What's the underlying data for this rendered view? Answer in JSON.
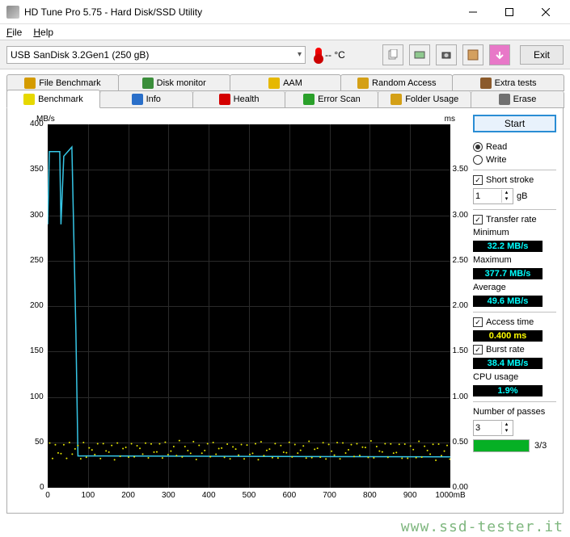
{
  "window": {
    "title": "HD Tune Pro 5.75 - Hard Disk/SSD Utility"
  },
  "menu": {
    "file": "File",
    "help": "Help"
  },
  "toolbar": {
    "drive": "USB SanDisk 3.2Gen1 (250 gB)",
    "temp": "-- °C",
    "exit": "Exit"
  },
  "tabs_top": [
    {
      "label": "File Benchmark",
      "icon": "#d49b00"
    },
    {
      "label": "Disk monitor",
      "icon": "#3b8e3b"
    },
    {
      "label": "AAM",
      "icon": "#e6b800"
    },
    {
      "label": "Random Access",
      "icon": "#d4a017"
    },
    {
      "label": "Extra tests",
      "icon": "#8b5a2b"
    }
  ],
  "tabs_bottom": [
    {
      "label": "Benchmark",
      "icon": "#e6d800",
      "active": true
    },
    {
      "label": "Info",
      "icon": "#2a6fc9"
    },
    {
      "label": "Health",
      "icon": "#d40000"
    },
    {
      "label": "Error Scan",
      "icon": "#2aa02a"
    },
    {
      "label": "Folder Usage",
      "icon": "#d4a017"
    },
    {
      "label": "Erase",
      "icon": "#707070"
    }
  ],
  "chart": {
    "y_left_unit": "MB/s",
    "y_right_unit": "ms",
    "x_unit": "mB",
    "y_left_ticks": [
      0,
      50,
      100,
      150,
      200,
      250,
      300,
      350,
      400
    ],
    "y_right_ticks": [
      "0.00",
      "0.50",
      "1.00",
      "1.50",
      "2.00",
      "2.50",
      "3.00",
      "3.50",
      "4.00"
    ],
    "x_ticks": [
      0,
      100,
      200,
      300,
      400,
      500,
      600,
      700,
      800,
      900,
      1000
    ],
    "y_max": 400,
    "x_max": 1000,
    "line_color": "#36c6e6",
    "access_color": "#e6e600",
    "bg": "#000000",
    "grid": "#2a2a2a",
    "transfer_segments": [
      [
        0,
        290
      ],
      [
        4,
        370
      ],
      [
        30,
        370
      ],
      [
        33,
        290
      ],
      [
        40,
        365
      ],
      [
        60,
        375
      ],
      [
        70,
        170
      ],
      [
        75,
        35
      ],
      [
        1000,
        34
      ]
    ],
    "access_band": {
      "ymin": 0.32,
      "ymax": 0.5
    }
  },
  "side": {
    "start": "Start",
    "read": "Read",
    "write": "Write",
    "short_stroke": "Short stroke",
    "stroke_val": "1",
    "stroke_unit": "gB",
    "transfer_rate": "Transfer rate",
    "min_label": "Minimum",
    "min_val": "32.2 MB/s",
    "max_label": "Maximum",
    "max_val": "377.7 MB/s",
    "avg_label": "Average",
    "avg_val": "49.6 MB/s",
    "access_label": "Access time",
    "access_val": "0.400 ms",
    "burst_label": "Burst rate",
    "burst_val": "38.4 MB/s",
    "cpu_label": "CPU usage",
    "cpu_val": "1.9%",
    "passes_label": "Number of passes",
    "passes_val": "3",
    "passes_txt": "3/3"
  },
  "watermark": "www.ssd-tester.it"
}
